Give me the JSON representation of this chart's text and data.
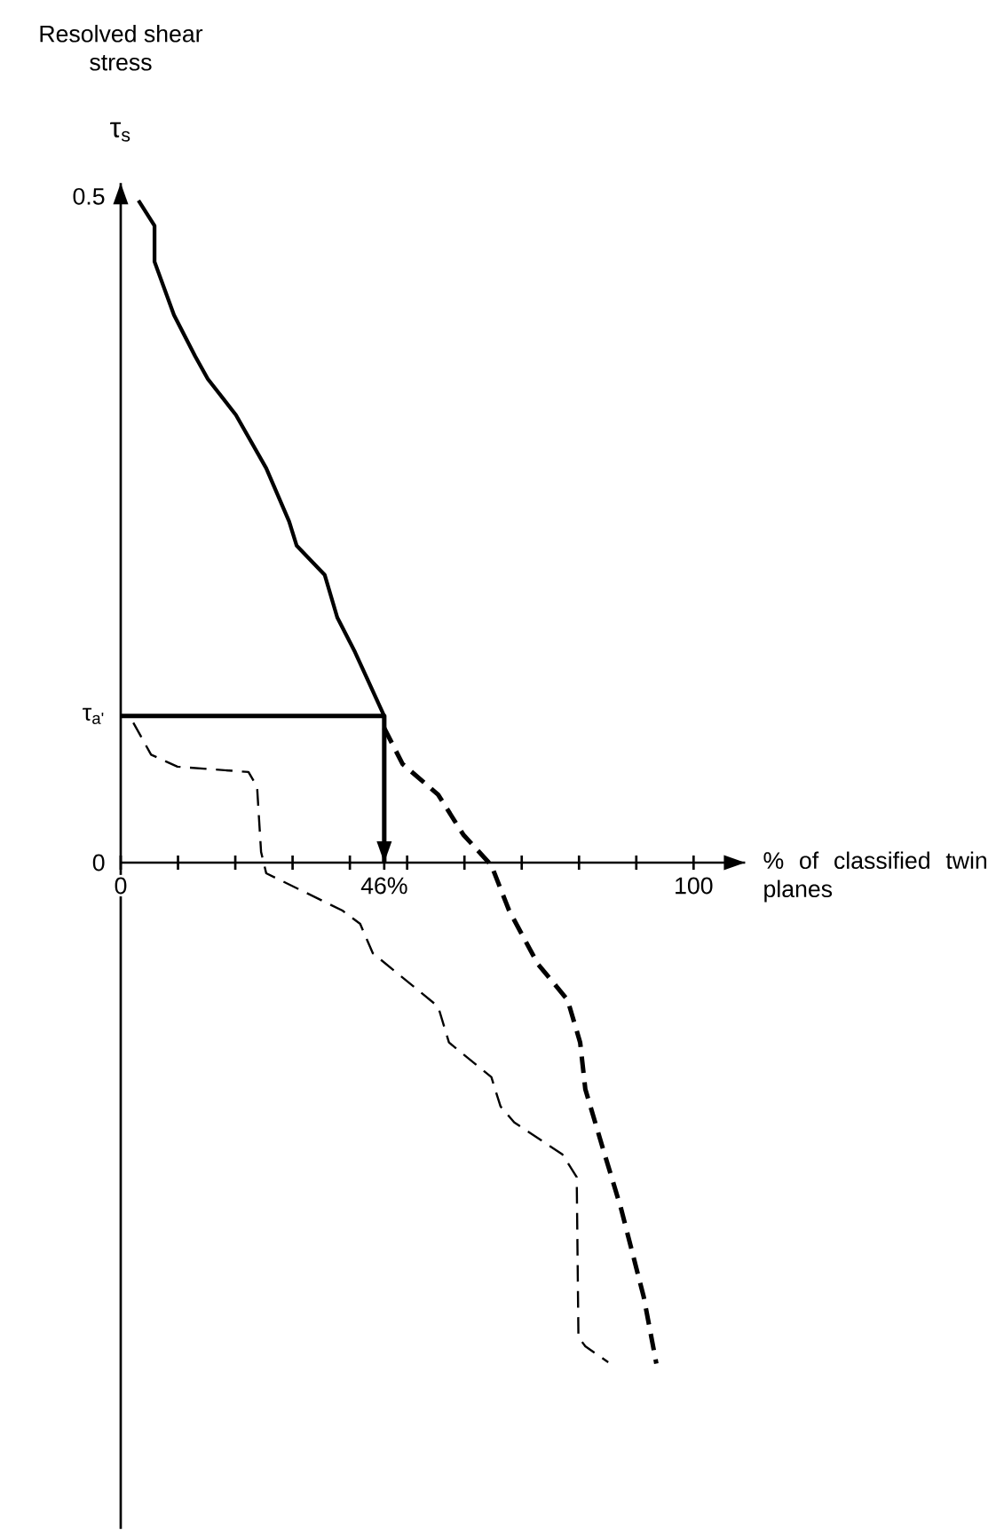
{
  "chart_data": {
    "type": "line",
    "ylabel": "Resolved shear stress",
    "xlabel": "% of classified twin planes",
    "annotations": [
      "τ$_{s}$"
    ],
    "xlim": [
      0,
      109
    ],
    "ylim": [
      -0.5,
      0.51
    ],
    "xticks": [
      0,
      {
        "value": 10,
        "label": null
      },
      {
        "value": 20,
        "label": null
      },
      {
        "value": 30,
        "label": null
      },
      {
        "value": 40,
        "label": null
      },
      {
        "value": 46,
        "label": "46%"
      },
      {
        "value": 50,
        "label": null
      },
      {
        "value": 60,
        "label": null
      },
      {
        "value": 70,
        "label": null
      },
      {
        "value": 80,
        "label": null
      },
      {
        "value": 90,
        "label": null
      },
      100
    ],
    "yticks": [
      0,
      {
        "value": 0.11,
        "label": "τ$_{a'}$"
      },
      0.5
    ],
    "series": [
      {
        "color": "#000000",
        "line_style": "solid",
        "x": [
          3.1,
          5.9,
          5.9,
          9.3,
          13.0,
          15.2,
          20.1,
          25.4,
          29.4,
          30.7,
          35.6,
          37.8,
          40.9,
          46
        ],
        "values": [
          0.497,
          0.478,
          0.451,
          0.411,
          0.38,
          0.363,
          0.336,
          0.296,
          0.256,
          0.238,
          0.216,
          0.184,
          0.158,
          0.11
        ]
      },
      {
        "color": "#000000",
        "line_style": "dashed",
        "x": [
          46,
          49.2,
          55.4,
          59.8,
          64.7,
          67.8,
          72.8,
          78.0,
          80.2,
          81.1,
          84.2,
          87.3,
          91.3,
          93.5
        ],
        "values": [
          0.101,
          0.074,
          0.051,
          0.021,
          -0.002,
          -0.036,
          -0.076,
          -0.103,
          -0.135,
          -0.17,
          -0.215,
          -0.259,
          -0.326,
          -0.376
        ]
      },
      {
        "color": "#000000",
        "line_style": "dashed",
        "x": [
          2.2,
          5.3,
          9.9,
          22.3,
          23.8,
          24.5,
          25.4,
          38.7,
          41.8,
          44.0,
          55.4,
          57.3,
          64.7,
          66.3,
          68.7,
          77.1,
          79.6,
          79.9,
          81.1,
          85.1
        ],
        "values": [
          0.105,
          0.081,
          0.072,
          0.068,
          0.057,
          0.008,
          -0.008,
          -0.036,
          -0.046,
          -0.068,
          -0.108,
          -0.135,
          -0.161,
          -0.183,
          -0.195,
          -0.219,
          -0.236,
          -0.356,
          -0.363,
          -0.375
        ]
      },
      {
        "type": "line",
        "color": "#000000",
        "line_style": "solid",
        "x": [
          0,
          46,
          46
        ],
        "values": [
          0.11,
          0.11,
          0
        ]
      }
    ]
  }
}
